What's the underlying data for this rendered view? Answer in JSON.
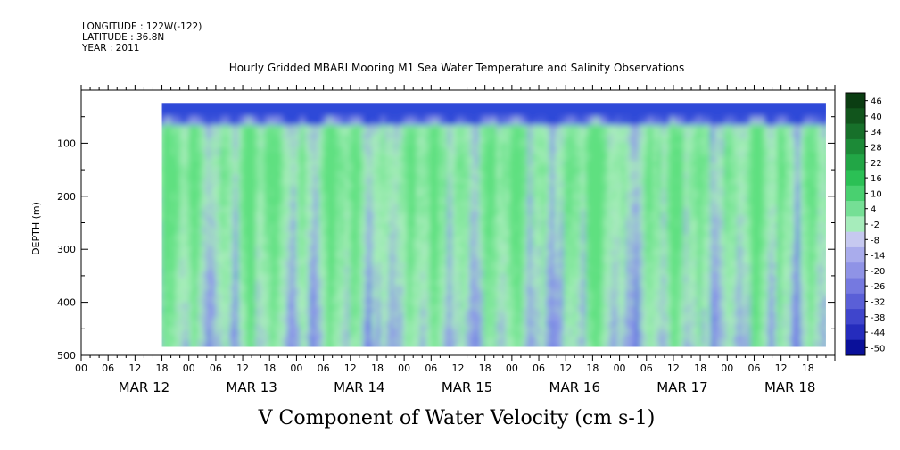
{
  "header": {
    "longitude": "LONGITUDE : 122W(-122)",
    "latitude": "LATITUDE : 36.8N",
    "year": "YEAR : 2011"
  },
  "chart_data": {
    "type": "heatmap",
    "title": "Hourly Gridded MBARI Mooring M1 Sea Water Temperature and Salinity Observations",
    "bottom_title": "V Component of Water Velocity (cm s-1)",
    "ylabel": "DEPTH (m)",
    "ylim": [
      500,
      0
    ],
    "y_ticks": [
      "100",
      "200",
      "300",
      "400",
      "500"
    ],
    "x_hour_ticks": [
      "00",
      "06",
      "12",
      "18",
      "00",
      "06",
      "12",
      "18",
      "00",
      "06",
      "12",
      "18",
      "00",
      "06",
      "12",
      "18",
      "00",
      "06",
      "12",
      "18",
      "00",
      "06",
      "12",
      "18",
      "00",
      "06",
      "12",
      "18"
    ],
    "x_day_labels": [
      "MAR 12",
      "MAR 13",
      "MAR 14",
      "MAR 15",
      "MAR 16",
      "MAR 17",
      "MAR 18"
    ],
    "data_extent": {
      "start_hour": 18,
      "end_hour": 166,
      "depth_top": 24,
      "depth_bottom": 484
    },
    "colorbar": {
      "labels": [
        "46",
        "40",
        "34",
        "28",
        "22",
        "16",
        "10",
        "4",
        "-2",
        "-8",
        "-14",
        "-20",
        "-26",
        "-32",
        "-38",
        "-44",
        "-50"
      ],
      "colors": [
        "#0b3d12",
        "#11551c",
        "#17702a",
        "#1c8a37",
        "#22a646",
        "#2bc055",
        "#49d070",
        "#75df95",
        "#a6ecbb",
        "#c6c9f0",
        "#a9acec",
        "#8f93e6",
        "#7579e0",
        "#5a5fd7",
        "#3f45cc",
        "#252cbd",
        "#0a109a"
      ]
    },
    "colors": {
      "cold_surface": "#2f49d8",
      "blue_mid": "#8f9be8",
      "green": "#5ee080",
      "light_green": "#a8edbb"
    }
  }
}
